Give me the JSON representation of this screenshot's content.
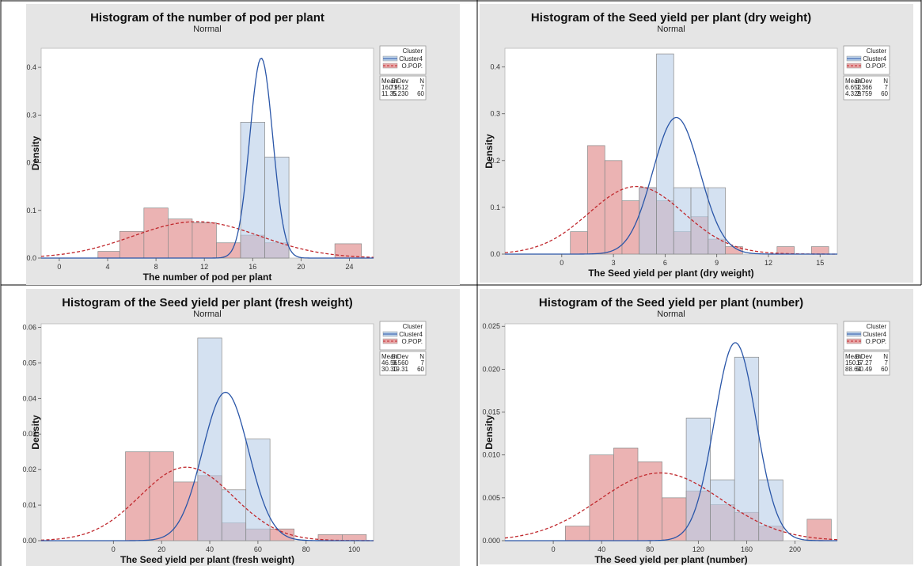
{
  "legend_title": "Cluster",
  "chart_data": [
    {
      "type": "histogram",
      "title": "Histogram of the number of pod per plant",
      "subtitle": "Normal",
      "xlabel": "The number of pod per plant",
      "ylabel": "Density",
      "xlim": [
        -1.5,
        26
      ],
      "ylim": [
        0,
        0.44
      ],
      "xticks": [
        0,
        4,
        8,
        12,
        16,
        20,
        24
      ],
      "xtick_labels": [
        "0",
        "4",
        "8",
        "12",
        "16",
        "20",
        "24"
      ],
      "yticks": [
        0,
        0.1,
        0.2,
        0.3,
        0.4
      ],
      "ytick_labels": [
        "0.0",
        "0.1",
        "0.2",
        "0.3",
        "0.4"
      ],
      "series": [
        {
          "name": "O.POP.",
          "color": "#e8a6a6",
          "line_color": "#c0282d",
          "line_style": "dashed",
          "bins": [
            {
              "x0": 3.2,
              "x1": 5.0,
              "density": 0.014
            },
            {
              "x0": 5.0,
              "x1": 7.0,
              "density": 0.056
            },
            {
              "x0": 7.0,
              "x1": 9.0,
              "density": 0.105
            },
            {
              "x0": 9.0,
              "x1": 11.0,
              "density": 0.082
            },
            {
              "x0": 11.0,
              "x1": 13.0,
              "density": 0.074
            },
            {
              "x0": 13.0,
              "x1": 15.0,
              "density": 0.032
            },
            {
              "x0": 15.0,
              "x1": 17.0,
              "density": 0.048
            },
            {
              "x0": 17.0,
              "x1": 19.0,
              "density": 0.032
            },
            {
              "x0": 22.8,
              "x1": 25.0,
              "density": 0.03
            }
          ],
          "stats": {
            "mean": "11.35",
            "stdev": "5.230",
            "n": "60"
          },
          "fit": {
            "mean": 11.35,
            "stdev": 5.23
          }
        },
        {
          "name": "Cluster4",
          "color": "#b9cfe8",
          "line_color": "#2a56a8",
          "line_style": "solid",
          "bins": [
            {
              "x0": 15.0,
              "x1": 17.0,
              "density": 0.285
            },
            {
              "x0": 17.0,
              "x1": 19.0,
              "density": 0.212
            }
          ],
          "stats": {
            "mean": "16.71",
            "stdev": "0.9512",
            "n": "7"
          },
          "fit": {
            "mean": 16.71,
            "stdev": 0.9512
          }
        }
      ]
    },
    {
      "type": "histogram",
      "title": "Histogram of the Seed yield per plant (dry weight)",
      "subtitle": "Normal",
      "xlabel": "The Seed yield per plant (dry weight)",
      "ylabel": "Density",
      "xlim": [
        -3.3,
        16
      ],
      "ylim": [
        0,
        0.44
      ],
      "xticks": [
        0,
        3,
        6,
        9,
        12,
        15
      ],
      "xtick_labels": [
        "0",
        "3",
        "6",
        "9",
        "12",
        "15"
      ],
      "yticks": [
        0,
        0.1,
        0.2,
        0.3,
        0.4
      ],
      "ytick_labels": [
        "0.0",
        "0.1",
        "0.2",
        "0.3",
        "0.4"
      ],
      "series": [
        {
          "name": "O.POP.",
          "color": "#e8a6a6",
          "line_color": "#c0282d",
          "line_style": "dashed",
          "bins": [
            {
              "x0": 0.5,
              "x1": 1.5,
              "density": 0.048
            },
            {
              "x0": 1.5,
              "x1": 2.5,
              "density": 0.232
            },
            {
              "x0": 2.5,
              "x1": 3.5,
              "density": 0.2
            },
            {
              "x0": 3.5,
              "x1": 4.5,
              "density": 0.114
            },
            {
              "x0": 4.5,
              "x1": 5.5,
              "density": 0.142
            },
            {
              "x0": 5.5,
              "x1": 6.5,
              "density": 0.114
            },
            {
              "x0": 6.5,
              "x1": 7.5,
              "density": 0.048
            },
            {
              "x0": 7.5,
              "x1": 8.5,
              "density": 0.08
            },
            {
              "x0": 8.5,
              "x1": 9.5,
              "density": 0.032
            },
            {
              "x0": 9.5,
              "x1": 10.5,
              "density": 0.016
            },
            {
              "x0": 12.5,
              "x1": 13.5,
              "density": 0.016
            },
            {
              "x0": 14.5,
              "x1": 15.5,
              "density": 0.016
            }
          ],
          "stats": {
            "mean": "4.329",
            "stdev": "2.759",
            "n": "60"
          },
          "fit": {
            "mean": 4.329,
            "stdev": 2.759
          }
        },
        {
          "name": "Cluster4",
          "color": "#b9cfe8",
          "line_color": "#2a56a8",
          "line_style": "solid",
          "bins": [
            {
              "x0": 4.5,
              "x1": 5.5,
              "density": 0.142
            },
            {
              "x0": 5.5,
              "x1": 6.5,
              "density": 0.428
            },
            {
              "x0": 6.5,
              "x1": 7.5,
              "density": 0.142
            },
            {
              "x0": 7.5,
              "x1": 8.5,
              "density": 0.142
            },
            {
              "x0": 8.5,
              "x1": 9.5,
              "density": 0.142
            }
          ],
          "stats": {
            "mean": "6.652",
            "stdev": "1.366",
            "n": "7"
          },
          "fit": {
            "mean": 6.652,
            "stdev": 1.366
          }
        }
      ]
    },
    {
      "type": "histogram",
      "title": "Histogram of the Seed yield per plant (fresh weight)",
      "subtitle": "Normal",
      "xlabel": "The Seed yield per plant (fresh weight)",
      "ylabel": "Density",
      "xlim": [
        -30,
        108
      ],
      "ylim": [
        0,
        0.061
      ],
      "xticks": [
        0,
        20,
        40,
        60,
        80,
        100
      ],
      "xtick_labels": [
        "0",
        "20",
        "40",
        "60",
        "80",
        "100"
      ],
      "yticks": [
        0,
        0.01,
        0.02,
        0.03,
        0.04,
        0.05,
        0.06
      ],
      "ytick_labels": [
        "0.00",
        "0.01",
        "0.02",
        "0.03",
        "0.04",
        "0.05",
        "0.06"
      ],
      "series": [
        {
          "name": "O.POP.",
          "color": "#e8a6a6",
          "line_color": "#c0282d",
          "line_style": "dashed",
          "bins": [
            {
              "x0": 5,
              "x1": 15,
              "density": 0.025
            },
            {
              "x0": 15,
              "x1": 25,
              "density": 0.025
            },
            {
              "x0": 25,
              "x1": 35,
              "density": 0.0165
            },
            {
              "x0": 35,
              "x1": 45,
              "density": 0.0183
            },
            {
              "x0": 45,
              "x1": 55,
              "density": 0.005
            },
            {
              "x0": 55,
              "x1": 65,
              "density": 0.0033
            },
            {
              "x0": 65,
              "x1": 75,
              "density": 0.0033
            },
            {
              "x0": 85,
              "x1": 95,
              "density": 0.0017
            },
            {
              "x0": 95,
              "x1": 105,
              "density": 0.0017
            }
          ],
          "stats": {
            "mean": "30.30",
            "stdev": "19.31",
            "n": "60"
          },
          "fit": {
            "mean": 30.3,
            "stdev": 19.31
          }
        },
        {
          "name": "Cluster4",
          "color": "#b9cfe8",
          "line_color": "#2a56a8",
          "line_style": "solid",
          "bins": [
            {
              "x0": 35,
              "x1": 45,
              "density": 0.057
            },
            {
              "x0": 45,
              "x1": 55,
              "density": 0.0143
            },
            {
              "x0": 55,
              "x1": 65,
              "density": 0.0286
            }
          ],
          "stats": {
            "mean": "46.56",
            "stdev": "9.560",
            "n": "7"
          },
          "fit": {
            "mean": 46.56,
            "stdev": 9.56
          }
        }
      ]
    },
    {
      "type": "histogram",
      "title": "Histogram of the Seed yield per plant (number)",
      "subtitle": "Normal",
      "xlabel": "The Seed yield per plant (number)",
      "ylabel": "Density",
      "xlim": [
        -40,
        235
      ],
      "ylim": [
        0,
        0.0253
      ],
      "xticks": [
        0,
        40,
        80,
        120,
        160,
        200
      ],
      "xtick_labels": [
        "0",
        "40",
        "80",
        "120",
        "160",
        "200"
      ],
      "yticks": [
        0,
        0.005,
        0.01,
        0.015,
        0.02,
        0.025
      ],
      "ytick_labels": [
        "0.000",
        "0.005",
        "0.010",
        "0.015",
        "0.020",
        "0.025"
      ],
      "series": [
        {
          "name": "O.POP.",
          "color": "#e8a6a6",
          "line_color": "#c0282d",
          "line_style": "dashed",
          "bins": [
            {
              "x0": 10,
              "x1": 30,
              "density": 0.0017
            },
            {
              "x0": 30,
              "x1": 50,
              "density": 0.01
            },
            {
              "x0": 50,
              "x1": 70,
              "density": 0.0108
            },
            {
              "x0": 70,
              "x1": 90,
              "density": 0.0092
            },
            {
              "x0": 90,
              "x1": 110,
              "density": 0.005
            },
            {
              "x0": 110,
              "x1": 130,
              "density": 0.0058
            },
            {
              "x0": 130,
              "x1": 150,
              "density": 0.0042
            },
            {
              "x0": 150,
              "x1": 170,
              "density": 0.0033
            },
            {
              "x0": 170,
              "x1": 190,
              "density": 0.0017
            },
            {
              "x0": 210,
              "x1": 230,
              "density": 0.0025
            }
          ],
          "stats": {
            "mean": "88.64",
            "stdev": "50.49",
            "n": "60"
          },
          "fit": {
            "mean": 88.64,
            "stdev": 50.49
          }
        },
        {
          "name": "Cluster4",
          "color": "#b9cfe8",
          "line_color": "#2a56a8",
          "line_style": "solid",
          "bins": [
            {
              "x0": 110,
              "x1": 130,
              "density": 0.0143
            },
            {
              "x0": 130,
              "x1": 150,
              "density": 0.0071
            },
            {
              "x0": 150,
              "x1": 170,
              "density": 0.0214
            },
            {
              "x0": 170,
              "x1": 190,
              "density": 0.0071
            }
          ],
          "stats": {
            "mean": "150.6",
            "stdev": "17.27",
            "n": "7"
          },
          "fit": {
            "mean": 150.6,
            "stdev": 17.27
          }
        }
      ]
    }
  ],
  "stats_headers": [
    "Mean",
    "StDev",
    "N"
  ]
}
